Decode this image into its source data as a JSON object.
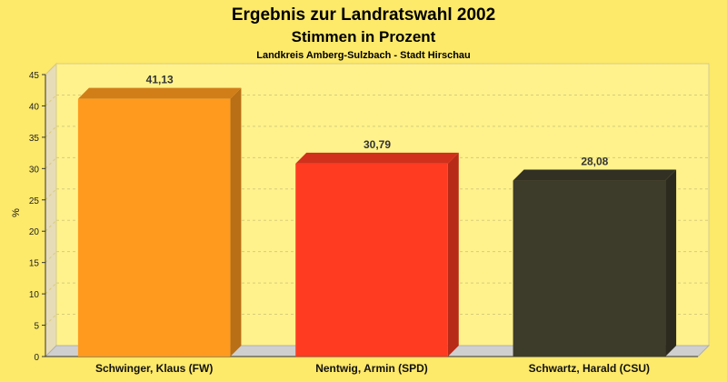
{
  "chart_data": {
    "type": "bar",
    "title": "Ergebnis zur Landratswahl 2002",
    "subtitle": "Stimmen in Prozent",
    "subsubtitle": "Landkreis Amberg-Sulzbach - Stadt Hirschau",
    "ylabel": "%",
    "xlabel": "",
    "ylim": [
      0,
      45
    ],
    "yticks": [
      "0",
      "5",
      "10",
      "15",
      "20",
      "25",
      "30",
      "35",
      "40",
      "45"
    ],
    "grid": true,
    "categories": [
      "Schwinger, Klaus (FW)",
      "Nentwig, Armin (SPD)",
      "Schwartz, Harald (CSU)"
    ],
    "values": [
      41.13,
      30.79,
      28.08
    ],
    "value_labels": [
      "41,13",
      "30,79",
      "28,08"
    ],
    "colors": [
      "#ff9a1e",
      "#ff3b22",
      "#3d3b2a"
    ]
  }
}
